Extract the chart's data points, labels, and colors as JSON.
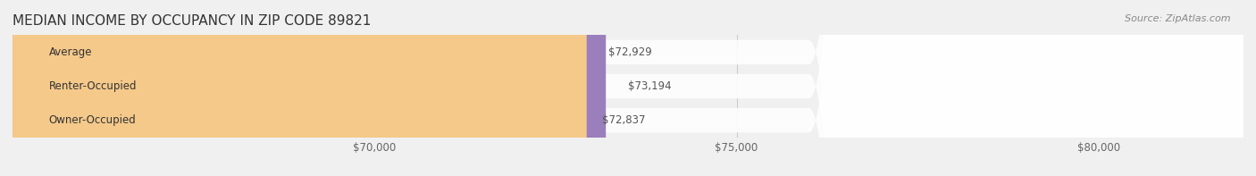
{
  "title": "MEDIAN INCOME BY OCCUPANCY IN ZIP CODE 89821",
  "source": "Source: ZipAtlas.com",
  "categories": [
    "Owner-Occupied",
    "Renter-Occupied",
    "Average"
  ],
  "values": [
    72837,
    73194,
    72929
  ],
  "labels": [
    "$72,837",
    "$73,194",
    "$72,929"
  ],
  "bar_colors": [
    "#6ecfcc",
    "#9b7fbd",
    "#f5c98a"
  ],
  "bar_edge_colors": [
    "#6ecfcc",
    "#9b7fbd",
    "#f5c98a"
  ],
  "background_color": "#f0f0f0",
  "bar_bg_color": "#e8e8e8",
  "xmin": 65000,
  "xmax": 82000,
  "xticks": [
    70000,
    75000,
    80000
  ],
  "xtick_labels": [
    "$70,000",
    "$75,000",
    "$80,000"
  ],
  "title_fontsize": 11,
  "label_fontsize": 8.5,
  "tick_fontsize": 8.5,
  "source_fontsize": 8
}
